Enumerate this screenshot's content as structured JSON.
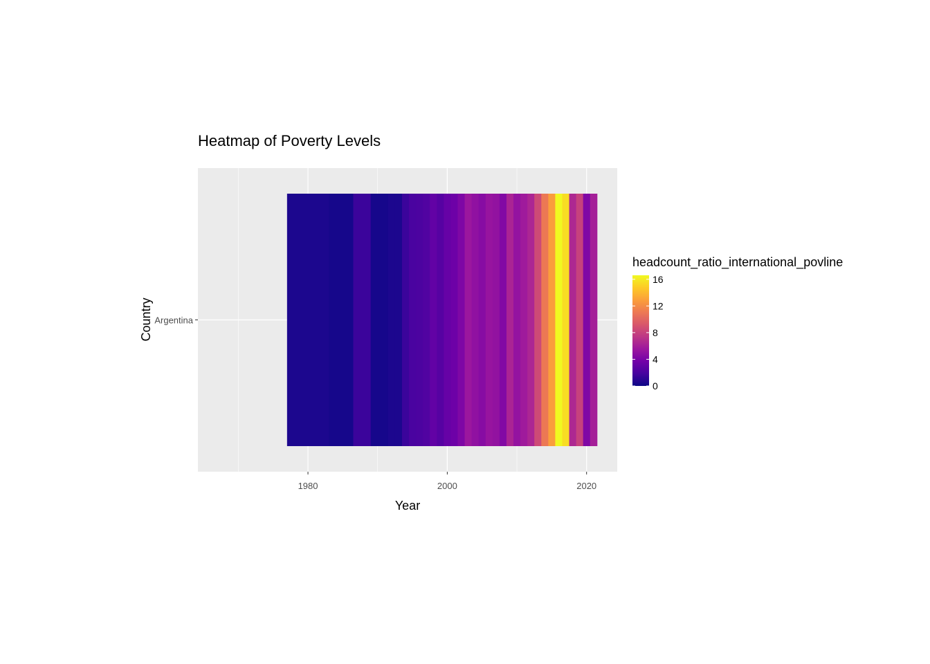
{
  "chart_data": {
    "type": "heatmap",
    "title": "Heatmap of Poverty Levels",
    "xlabel": "Year",
    "ylabel": "Country",
    "y_categories": [
      "Argentina"
    ],
    "xlim": [
      1964.2,
      2024.4
    ],
    "x_ticks": [
      1980,
      2000,
      2020
    ],
    "grid": true,
    "panel_background": "#ebebeb",
    "colorscale": "plasma",
    "color_range": [
      0,
      16.6
    ],
    "legend": {
      "title": "headcount_ratio_international_povline",
      "ticks": [
        0,
        4,
        8,
        12,
        16
      ],
      "position": "right"
    },
    "cells": [
      {
        "year": 1980,
        "value": 0.5
      },
      {
        "year": 1986,
        "value": 0.3
      },
      {
        "year": 1987,
        "value": 1.5
      },
      {
        "year": 1991,
        "value": 0.3
      },
      {
        "year": 1992,
        "value": 0.5
      },
      {
        "year": 1993,
        "value": 0.5
      },
      {
        "year": 1994,
        "value": 1.5
      },
      {
        "year": 1995,
        "value": 2.0
      },
      {
        "year": 1996,
        "value": 2.1
      },
      {
        "year": 1997,
        "value": 2.3
      },
      {
        "year": 1998,
        "value": 3.0
      },
      {
        "year": 1999,
        "value": 2.5
      },
      {
        "year": 2000,
        "value": 3.2
      },
      {
        "year": 2001,
        "value": 3.5
      },
      {
        "year": 2002,
        "value": 4.2
      },
      {
        "year": 2003,
        "value": 5.5
      },
      {
        "year": 2004,
        "value": 5.0
      },
      {
        "year": 2005,
        "value": 4.6
      },
      {
        "year": 2006,
        "value": 5.3
      },
      {
        "year": 2007,
        "value": 5.1
      },
      {
        "year": 2008,
        "value": 4.4
      },
      {
        "year": 2009,
        "value": 6.3
      },
      {
        "year": 2010,
        "value": 5.2
      },
      {
        "year": 2011,
        "value": 5.7
      },
      {
        "year": 2012,
        "value": 6.4
      },
      {
        "year": 2013,
        "value": 8.5
      },
      {
        "year": 2014,
        "value": 11.0
      },
      {
        "year": 2015,
        "value": 12.8
      },
      {
        "year": 2016,
        "value": 16.6
      },
      {
        "year": 2017,
        "value": 15.5
      },
      {
        "year": 2018,
        "value": 6.5
      },
      {
        "year": 2019,
        "value": 8.0
      },
      {
        "year": 2020,
        "value": 4.3
      },
      {
        "year": 2021,
        "value": 6.0
      }
    ]
  }
}
